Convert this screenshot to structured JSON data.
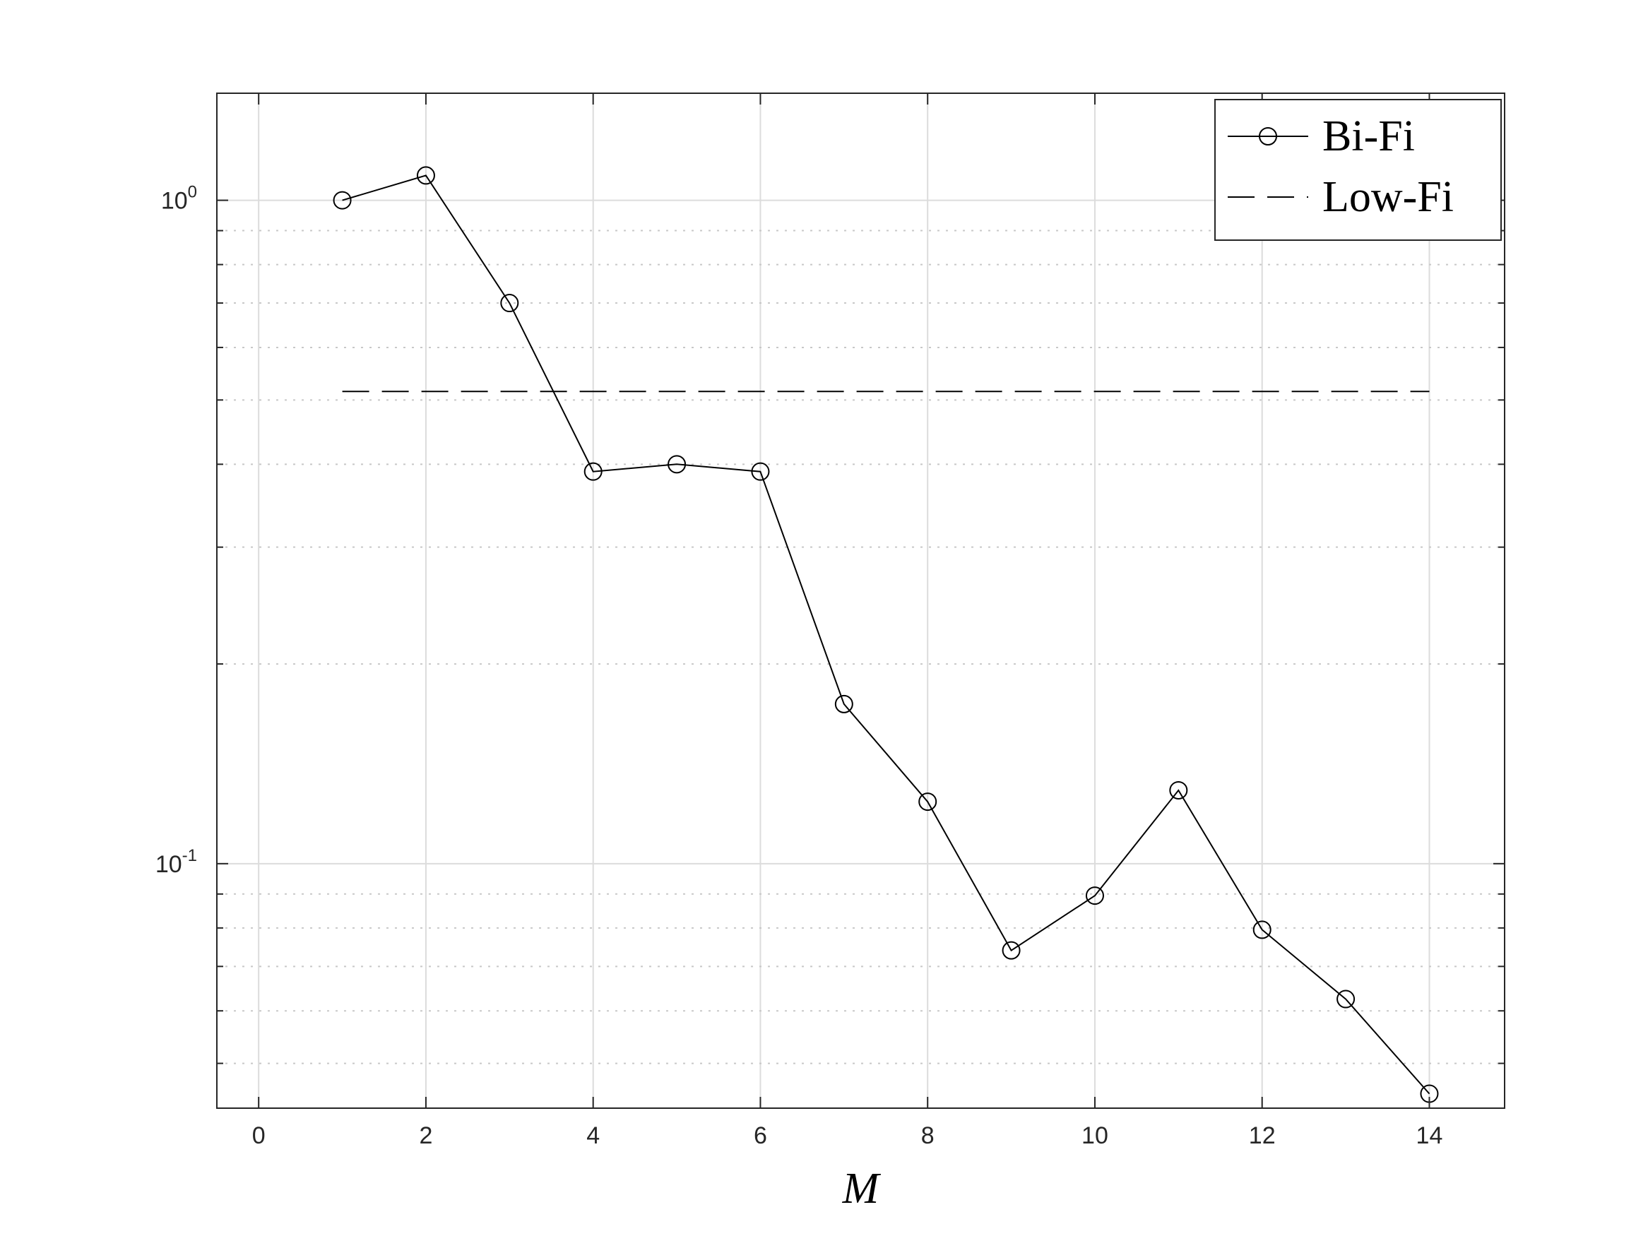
{
  "chart_data": {
    "type": "line",
    "xlabel": "M",
    "ylabel": "",
    "title": "",
    "xlim": [
      -0.5,
      14.9
    ],
    "ylim": [
      0.0428,
      1.45
    ],
    "yscale": "log",
    "grid": true,
    "legend_position": "top-right",
    "x_ticks": [
      0,
      2,
      4,
      6,
      8,
      10,
      12,
      14
    ],
    "x_tick_labels": [
      "0",
      "2",
      "4",
      "6",
      "8",
      "10",
      "12",
      "14"
    ],
    "y_ticks": [
      {
        "value": 1,
        "base": "10",
        "exponent": "0"
      },
      {
        "value": 0.1,
        "base": "10",
        "exponent": "-1"
      }
    ],
    "series": [
      {
        "name": "Bi-Fi",
        "style": "solid",
        "marker": "circle",
        "color": "#000000",
        "x": [
          1,
          2,
          3,
          4,
          5,
          6,
          7,
          8,
          9,
          10,
          11,
          12,
          13,
          14
        ],
        "y": [
          1.0,
          1.09,
          0.7,
          0.39,
          0.4,
          0.39,
          0.174,
          0.124,
          0.074,
          0.0895,
          0.129,
          0.0795,
          0.0625,
          0.045
        ]
      },
      {
        "name": "Low-Fi",
        "style": "dashed",
        "marker": "none",
        "color": "#000000",
        "x": [
          1,
          14
        ],
        "y": [
          0.515,
          0.515
        ]
      }
    ]
  }
}
